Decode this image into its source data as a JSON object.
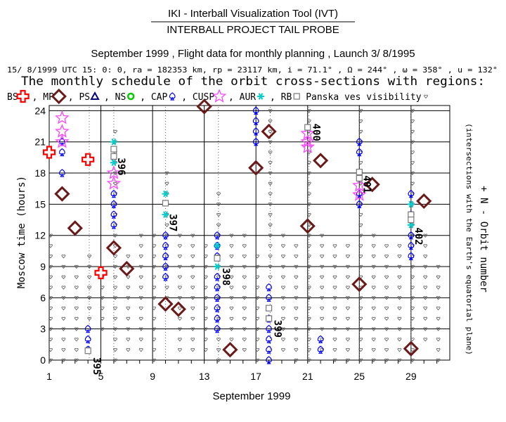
{
  "header": {
    "title": "IKI - Interball Visualization Tool (IVT)",
    "subtitle": "INTERBALL PROJECT TAIL PROBE",
    "period_line": "September 1999 , Flight data for monthly planning , Launch 3/ 8/1995",
    "params_line": "15/ 8/1999 UTC 15: 0: 0, ra = 182353 km, rp = 23117 km, i = 71.1° , Ω = 244° , ω = 358° , u = 132°",
    "schedule_title": "The monthly schedule of the orbit cross-sections with regions:"
  },
  "legend": {
    "position": "top",
    "items": [
      {
        "label": "BS",
        "symbol": "cross",
        "color": "#ff0000"
      },
      {
        "label": ", MP",
        "symbol": "diamond",
        "color": "#6b1a1a"
      },
      {
        "label": ", PS",
        "symbol": "triangle",
        "color": "#000080"
      },
      {
        "label": ", NS",
        "symbol": "circle",
        "color": "#00cc00"
      },
      {
        "label": ", CAP",
        "symbol": "spade",
        "color": "#0000ff"
      },
      {
        "label": ", CUSP",
        "symbol": "star",
        "color": "#ff00ff"
      },
      {
        "label": ", AUR",
        "symbol": "asterisk",
        "color": "#00cccc"
      },
      {
        "label": ", RB",
        "symbol": "square",
        "color": "#777777"
      },
      {
        "label": "Panska ves visibility",
        "symbol": "heart",
        "color": "#555555"
      }
    ]
  },
  "colors": {
    "bs": "#ff0000",
    "mp": "#6b1a1a",
    "cap": "#0000ff",
    "cusp": "#ff44ff",
    "aur": "#00cccc",
    "rb": "#777777",
    "visibility": "#555555",
    "grid": "#000000"
  },
  "chart_data": {
    "type": "scatter",
    "xlabel": "September 1999",
    "ylabel": "Moscow time (hours)",
    "right_label": "+ N - Orbit number",
    "right_sublabel": "(intersections with the Earth's equatorial plane)",
    "xlim": [
      1,
      32
    ],
    "ylim": [
      0,
      24.5
    ],
    "x_ticks": [
      1,
      5,
      9,
      13,
      17,
      21,
      25,
      29
    ],
    "y_ticks": [
      0,
      3,
      6,
      9,
      12,
      15,
      18,
      21,
      24
    ],
    "grid": true,
    "orbit_lines": [
      {
        "number": "395",
        "day": 4.1,
        "hour": 0.0,
        "vlabel_y": 0.0
      },
      {
        "number": "396",
        "day": 6.0,
        "hour": 19.0,
        "vlabel_y": 19.2
      },
      {
        "number": "397",
        "day": 10.0,
        "hour": 13.8,
        "vlabel_y": 13.8
      },
      {
        "number": "398",
        "day": 14.1,
        "hour": 8.8,
        "vlabel_y": 8.6
      },
      {
        "number": "399",
        "day": 18.1,
        "hour": 3.8,
        "vlabel_y": 3.6
      },
      {
        "number": "400",
        "day": 21.1,
        "hour": 22.8,
        "vlabel_y": 22.5
      },
      {
        "number": "401",
        "day": 25.0,
        "hour": 17.8,
        "vlabel_y": 17.5
      },
      {
        "number": "402",
        "day": 29.0,
        "hour": 12.8,
        "vlabel_y": 12.5
      }
    ],
    "series": [
      {
        "name": "BS",
        "symbol": "cross",
        "points": [
          [
            1,
            20
          ],
          [
            4,
            19.3
          ],
          [
            5,
            8.4
          ]
        ]
      },
      {
        "name": "MP",
        "symbol": "diamond",
        "points": [
          [
            2,
            16
          ],
          [
            3,
            12.7
          ],
          [
            6,
            10.8
          ],
          [
            7,
            8.8
          ],
          [
            10,
            5.4
          ],
          [
            11,
            4.9
          ],
          [
            13,
            24.4
          ],
          [
            15,
            1.0
          ],
          [
            17,
            18.5
          ],
          [
            18,
            22
          ],
          [
            21,
            12.9
          ],
          [
            22,
            19.2
          ],
          [
            25,
            7.3
          ],
          [
            26,
            16.9
          ],
          [
            29,
            1.1
          ],
          [
            30,
            15.3
          ]
        ]
      },
      {
        "name": "CAP",
        "symbol": "spade",
        "points": [
          [
            2,
            21
          ],
          [
            2,
            20
          ],
          [
            2,
            18
          ],
          [
            4,
            3
          ],
          [
            4,
            2
          ],
          [
            4,
            1
          ],
          [
            6,
            16
          ],
          [
            6,
            15
          ],
          [
            6,
            14
          ],
          [
            6,
            13
          ],
          [
            10,
            12
          ],
          [
            10,
            11
          ],
          [
            10,
            10
          ],
          [
            10,
            9
          ],
          [
            10,
            8
          ],
          [
            14,
            12
          ],
          [
            14,
            11
          ],
          [
            14,
            10
          ],
          [
            14,
            8
          ],
          [
            14,
            7
          ],
          [
            14,
            6
          ],
          [
            14,
            5
          ],
          [
            14,
            4
          ],
          [
            14,
            3
          ],
          [
            18,
            7
          ],
          [
            18,
            6
          ],
          [
            18,
            4
          ],
          [
            18,
            3
          ],
          [
            18,
            2
          ],
          [
            18,
            1
          ],
          [
            18,
            0
          ],
          [
            17,
            24
          ],
          [
            17,
            23
          ],
          [
            17,
            22
          ],
          [
            17,
            21
          ],
          [
            22,
            2
          ],
          [
            22,
            1
          ],
          [
            25,
            21
          ],
          [
            25,
            20
          ],
          [
            25,
            16
          ],
          [
            25,
            15
          ],
          [
            29,
            16
          ],
          [
            29,
            14
          ],
          [
            29,
            12
          ],
          [
            29,
            11
          ],
          [
            29,
            10
          ]
        ]
      },
      {
        "name": "CUSP",
        "symbol": "star",
        "points": [
          [
            2,
            23.3
          ],
          [
            2,
            22
          ],
          [
            2,
            21
          ],
          [
            6,
            18
          ],
          [
            6,
            17
          ],
          [
            21,
            21.8
          ],
          [
            21,
            21
          ],
          [
            21,
            20.5
          ],
          [
            25,
            16.8
          ],
          [
            25,
            15.9
          ]
        ]
      },
      {
        "name": "AUR",
        "symbol": "asterisk",
        "points": [
          [
            6,
            21
          ],
          [
            6,
            19
          ],
          [
            10,
            16
          ],
          [
            10,
            14
          ],
          [
            14,
            11
          ],
          [
            14,
            9
          ],
          [
            29,
            15
          ],
          [
            29,
            13
          ]
        ]
      },
      {
        "name": "RB",
        "symbol": "square",
        "points": [
          [
            4,
            0.9
          ],
          [
            6,
            20.3
          ],
          [
            6,
            19.6
          ],
          [
            10,
            15.1
          ],
          [
            14,
            9.8
          ],
          [
            18,
            5
          ],
          [
            18,
            4
          ],
          [
            21,
            22.4
          ],
          [
            25,
            18.1
          ],
          [
            25,
            17.5
          ],
          [
            29,
            14
          ],
          [
            29,
            13.5
          ]
        ]
      }
    ],
    "visibility": {
      "symbol": "heart",
      "days": [
        {
          "day": 1,
          "from": 0,
          "to": 12
        },
        {
          "day": 2,
          "from": 0,
          "to": 10
        },
        {
          "day": 3,
          "from": 0,
          "to": 9
        },
        {
          "day": 4,
          "from": 4,
          "to": 10
        },
        {
          "day": 5,
          "from": 3,
          "to": 8
        },
        {
          "day": 6,
          "from": 0,
          "to": 22
        },
        {
          "day": 7,
          "from": 1,
          "to": 10
        },
        {
          "day": 8,
          "from": 1,
          "to": 12
        },
        {
          "day": 9,
          "from": 0,
          "to": 12
        },
        {
          "day": 10,
          "from": 6,
          "to": 18
        },
        {
          "day": 11,
          "from": 1,
          "to": 12
        },
        {
          "day": 12,
          "from": 1,
          "to": 12
        },
        {
          "day": 13,
          "from": 1,
          "to": 11
        },
        {
          "day": 14,
          "from": 0,
          "to": 16
        },
        {
          "day": 15,
          "from": 2,
          "to": 12
        },
        {
          "day": 16,
          "from": 1,
          "to": 12
        },
        {
          "day": 17,
          "from": 0,
          "to": 10
        },
        {
          "day": 18,
          "from": 8,
          "to": 24
        },
        {
          "day": 19,
          "from": 1,
          "to": 12
        },
        {
          "day": 20,
          "from": 0,
          "to": 11
        },
        {
          "day": 21,
          "from": 0,
          "to": 24
        },
        {
          "day": 22,
          "from": 1,
          "to": 12
        },
        {
          "day": 23,
          "from": 0,
          "to": 11
        },
        {
          "day": 24,
          "from": 0,
          "to": 11
        },
        {
          "day": 25,
          "from": 0,
          "to": 24
        },
        {
          "day": 26,
          "from": 0,
          "to": 12
        },
        {
          "day": 27,
          "from": 0,
          "to": 11
        },
        {
          "day": 28,
          "from": 0,
          "to": 11
        },
        {
          "day": 29,
          "from": 0,
          "to": 24
        },
        {
          "day": 30,
          "from": 2,
          "to": 12
        },
        {
          "day": 31,
          "from": 0,
          "to": 9
        }
      ]
    }
  }
}
